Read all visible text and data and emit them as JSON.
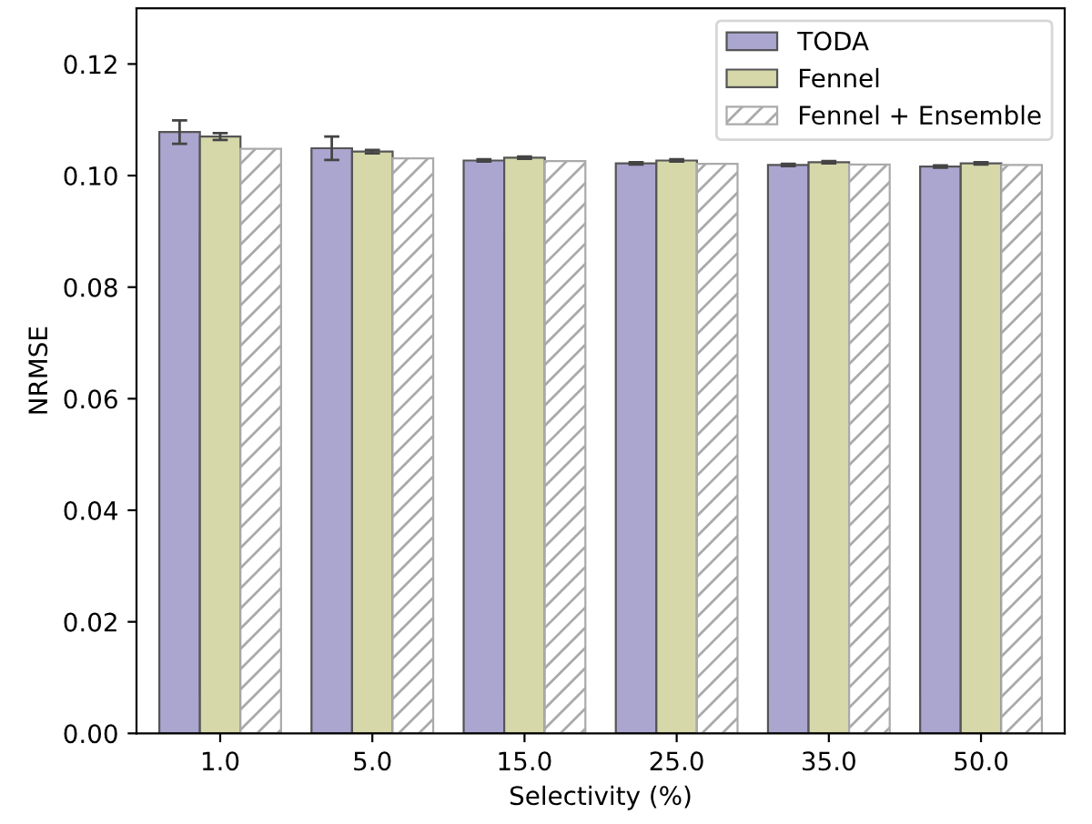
{
  "chart_data": {
    "type": "bar",
    "xlabel": "Selectivity (%)",
    "ylabel": "NRMSE",
    "categories": [
      "1.0",
      "5.0",
      "15.0",
      "25.0",
      "35.0",
      "50.0"
    ],
    "series": [
      {
        "name": "TODA",
        "color": "#aba6d0",
        "values": [
          0.1078,
          0.1049,
          0.1027,
          0.1022,
          0.1019,
          0.1016
        ],
        "errors": [
          0.0021,
          0.0021,
          0.0002,
          0.0002,
          0.0002,
          0.0002
        ]
      },
      {
        "name": "Fennel",
        "color": "#d6d8aa",
        "values": [
          0.107,
          0.1043,
          0.1032,
          0.1027,
          0.1024,
          0.1022
        ],
        "errors": [
          0.0006,
          0.0003,
          0.0002,
          0.0002,
          0.0002,
          0.0002
        ]
      },
      {
        "name": "Fennel + Ensemble",
        "color": "#aaaaaa",
        "values": [
          0.1048,
          0.1031,
          0.1026,
          0.1021,
          0.102,
          0.1019
        ]
      }
    ],
    "ylim": [
      0,
      0.13
    ],
    "yticks": [
      {
        "value": 0,
        "label": "0.00"
      },
      {
        "value": 0.02,
        "label": "0.02"
      },
      {
        "value": 0.04,
        "label": "0.04"
      },
      {
        "value": 0.06,
        "label": "0.06"
      },
      {
        "value": 0.08,
        "label": "0.08"
      },
      {
        "value": 0.1,
        "label": "0.10"
      },
      {
        "value": 0.12,
        "label": "0.12"
      }
    ],
    "legend": "top right",
    "grid": false
  }
}
